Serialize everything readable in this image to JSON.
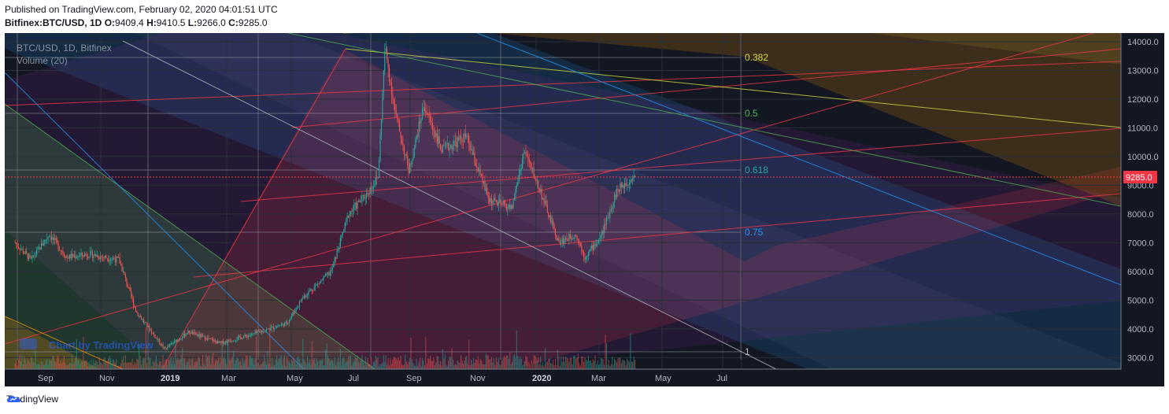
{
  "header": {
    "published": "Published on TradingView.com, February 02, 2020 04:01:51 UTC",
    "symbol": "Bitfinex:BTC/USD, 1D",
    "o_label": "O:",
    "o": "9409.4",
    "h_label": "H:",
    "h": "9410.5",
    "l_label": "L:",
    "l": "9266.0",
    "c_label": "C:",
    "c": "9285.0"
  },
  "chart": {
    "legend_symbol": "BTC/USD, 1D, Bitfinex",
    "legend_volume": "Volume (20)",
    "watermark": "Chart by TradingView",
    "last_price": "9285.0",
    "last_price_color": "#f23645",
    "bg": "#131722"
  },
  "footer": {
    "brand": "TradingView"
  },
  "chart_data": {
    "type": "candlestick",
    "x_ticks": [
      "Sep",
      "Nov",
      "2019",
      "Mar",
      "May",
      "Jul",
      "Sep",
      "Nov",
      "2020",
      "Mar",
      "May",
      "Jul"
    ],
    "y_ticks": [
      "14000.0",
      "13000.0",
      "12000.0",
      "11000.0",
      "10000.0",
      "9000.0",
      "8000.0",
      "7000.0",
      "6000.0",
      "5000.0",
      "4000.0",
      "3000.0"
    ],
    "ylim": [
      2600,
      14300
    ],
    "fib_levels": [
      "0.382",
      "0.5",
      "0.618",
      "0.75",
      "1"
    ],
    "series": [
      {
        "name": "BTC/USD",
        "values": [
          [
            "2018-08-06",
            7000
          ],
          [
            "2018-08-20",
            6400
          ],
          [
            "2018-09-05",
            7300
          ],
          [
            "2018-09-20",
            6500
          ],
          [
            "2018-10-10",
            6600
          ],
          [
            "2018-11-05",
            6400
          ],
          [
            "2018-11-20",
            4600
          ],
          [
            "2018-12-15",
            3300
          ],
          [
            "2019-01-05",
            3900
          ],
          [
            "2019-02-01",
            3500
          ],
          [
            "2019-03-01",
            3800
          ],
          [
            "2019-04-01",
            4200
          ],
          [
            "2019-04-15",
            5100
          ],
          [
            "2019-05-10",
            6000
          ],
          [
            "2019-05-25",
            8000
          ],
          [
            "2019-06-10",
            8700
          ],
          [
            "2019-06-20",
            9300
          ],
          [
            "2019-06-26",
            13800
          ],
          [
            "2019-07-05",
            11500
          ],
          [
            "2019-07-17",
            9500
          ],
          [
            "2019-07-30",
            11800
          ],
          [
            "2019-08-15",
            10200
          ],
          [
            "2019-09-05",
            10700
          ],
          [
            "2019-09-25",
            8500
          ],
          [
            "2019-10-15",
            8200
          ],
          [
            "2019-10-26",
            10200
          ],
          [
            "2019-11-10",
            8700
          ],
          [
            "2019-11-25",
            7000
          ],
          [
            "2019-12-10",
            7300
          ],
          [
            "2019-12-18",
            6500
          ],
          [
            "2020-01-01",
            7200
          ],
          [
            "2020-01-15",
            8800
          ],
          [
            "2020-02-01",
            9410
          ]
        ]
      },
      {
        "name": "Volume (20)",
        "values": []
      }
    ]
  }
}
